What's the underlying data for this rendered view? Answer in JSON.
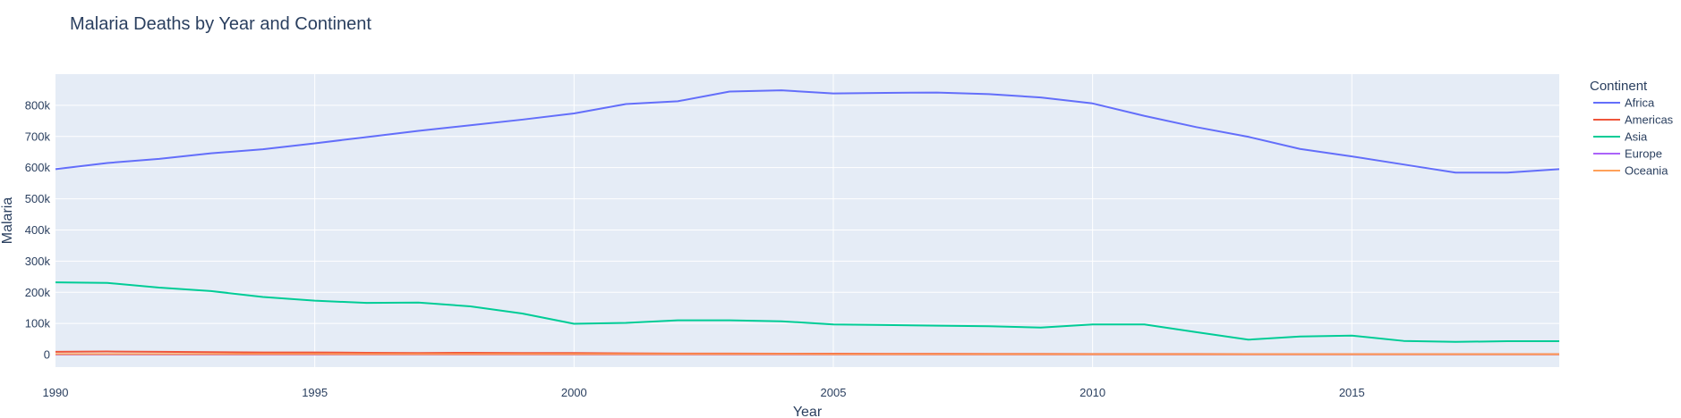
{
  "chart_data": {
    "type": "line",
    "title": "Malaria Deaths by Year and Continent",
    "xlabel": "Year",
    "ylabel": "Malaria",
    "xlim": [
      1990,
      2019
    ],
    "ylim": [
      -40000,
      900000
    ],
    "x_ticks": [
      1990,
      1995,
      2000,
      2005,
      2010,
      2015
    ],
    "y_ticks": [
      0,
      100000,
      200000,
      300000,
      400000,
      500000,
      600000,
      700000,
      800000
    ],
    "y_tick_labels": [
      "0",
      "100k",
      "200k",
      "300k",
      "400k",
      "500k",
      "600k",
      "700k",
      "800k"
    ],
    "grid": true,
    "legend": {
      "title": "Continent",
      "position": "right"
    },
    "x": [
      1990,
      1991,
      1992,
      1993,
      1994,
      1995,
      1996,
      1997,
      1998,
      1999,
      2000,
      2001,
      2002,
      2003,
      2004,
      2005,
      2006,
      2007,
      2008,
      2009,
      2010,
      2011,
      2012,
      2013,
      2014,
      2015,
      2016,
      2017,
      2018,
      2019
    ],
    "series": [
      {
        "name": "Africa",
        "color": "#636efa",
        "values": [
          595000,
          615000,
          628000,
          646000,
          659000,
          678000,
          698000,
          718000,
          736000,
          754000,
          774000,
          804000,
          813000,
          844000,
          848000,
          838000,
          840000,
          841000,
          836000,
          825000,
          806000,
          766000,
          730000,
          699000,
          660000,
          636000,
          610000,
          584000,
          584000,
          595000
        ]
      },
      {
        "name": "Americas",
        "color": "#ef553b",
        "values": [
          9000,
          10000,
          9000,
          8000,
          7000,
          7000,
          6000,
          5000,
          6000,
          5000,
          5000,
          4000,
          3500,
          3500,
          3000,
          3000,
          2800,
          2600,
          2400,
          2200,
          2000,
          2000,
          1800,
          1700,
          1600,
          1500,
          1500,
          1400,
          1400,
          1400
        ]
      },
      {
        "name": "Asia",
        "color": "#00cc96",
        "values": [
          232000,
          230000,
          215000,
          204000,
          185000,
          173000,
          166000,
          167000,
          155000,
          132000,
          99000,
          102000,
          110000,
          110000,
          107000,
          97000,
          95000,
          93000,
          91000,
          87000,
          97000,
          97000,
          72000,
          48000,
          58000,
          61000,
          44000,
          41000,
          43000,
          43000
        ]
      },
      {
        "name": "Europe",
        "color": "#ab63fa",
        "values": [
          80,
          80,
          80,
          80,
          70,
          70,
          70,
          60,
          60,
          60,
          50,
          50,
          50,
          40,
          40,
          40,
          40,
          30,
          30,
          30,
          30,
          30,
          30,
          30,
          20,
          20,
          20,
          20,
          20,
          20
        ]
      },
      {
        "name": "Oceania",
        "color": "#ffa15a",
        "values": [
          1500,
          1500,
          1500,
          1400,
          1400,
          1400,
          1300,
          1300,
          1300,
          1200,
          1200,
          1200,
          1100,
          1100,
          1100,
          1000,
          1000,
          1000,
          900,
          900,
          900,
          800,
          800,
          800,
          700,
          700,
          700,
          700,
          700,
          700
        ]
      }
    ]
  }
}
